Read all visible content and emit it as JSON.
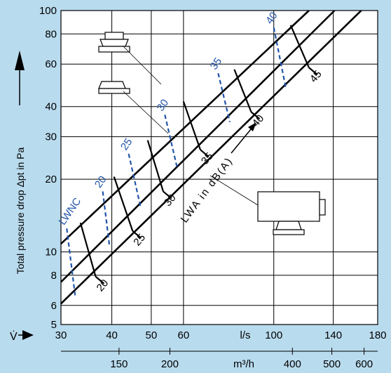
{
  "chart_data": {
    "type": "line",
    "scale": "log-log",
    "background_color": "#b9dbee",
    "plot_color": "#ffffff",
    "ylabel": "Total pressure drop Δpt in Pa",
    "xlabel": "V̇",
    "x_axis_ls": {
      "range": [
        30,
        180
      ],
      "ticks": [
        30,
        40,
        50,
        60,
        100,
        140,
        180
      ],
      "tick_labels": [
        "30",
        "40",
        "50",
        "60",
        "100",
        "140",
        "180"
      ],
      "unit": "l/s"
    },
    "x_axis_m3h": {
      "ticks": [
        150,
        200,
        400,
        500,
        600
      ],
      "tick_labels": [
        "150",
        "200",
        "400",
        "500",
        "600"
      ],
      "unit": "m³/h"
    },
    "y_axis": {
      "range": [
        5,
        100
      ],
      "ticks": [
        5,
        6,
        8,
        10,
        20,
        30,
        40,
        60,
        80,
        100
      ],
      "tick_labels": [
        "5",
        "6",
        "8",
        "10",
        "20",
        "30",
        "40",
        "60",
        "80",
        "100"
      ]
    },
    "series": [
      {
        "style": "solid",
        "points": [
          [
            30,
            10.8
          ],
          [
            122,
            100
          ]
        ]
      },
      {
        "style": "solid",
        "points": [
          [
            30,
            7.5
          ],
          [
            141,
            100
          ]
        ]
      },
      {
        "style": "solid",
        "points": [
          [
            30,
            6.1
          ],
          [
            164,
            100
          ]
        ]
      }
    ],
    "sound_level_label": "LWA in dB(A)",
    "sound_level_black": {
      "labels": [
        "20",
        "25",
        "30",
        "35",
        "40",
        "45"
      ],
      "ticks": [
        {
          "label": "20",
          "top": [
            33.5,
            13.2
          ],
          "bottom": [
            36.5,
            7.9
          ]
        },
        {
          "label": "25",
          "top": [
            40.5,
            20.5
          ],
          "bottom": [
            45,
            12.2
          ]
        },
        {
          "label": "30",
          "top": [
            49,
            29
          ],
          "bottom": [
            53.5,
            17.8
          ]
        },
        {
          "label": "35",
          "top": [
            60,
            42
          ],
          "bottom": [
            66,
            26.5
          ]
        },
        {
          "label": "40",
          "top": [
            80,
            57
          ],
          "bottom": [
            88,
            38
          ]
        },
        {
          "label": "45",
          "top": [
            110,
            87
          ],
          "bottom": [
            122,
            58
          ]
        }
      ]
    },
    "sound_level_blue": {
      "color": "#2255a8",
      "label": "LWNC",
      "labels": [
        "20",
        "25",
        "30",
        "35",
        "40"
      ],
      "ticks": [
        {
          "label": "LWNC",
          "top": [
            31,
            12.5
          ],
          "bottom": [
            32.5,
            6.6
          ]
        },
        {
          "label": "20",
          "top": [
            38,
            17.8
          ],
          "bottom": [
            39.5,
            10.5
          ]
        },
        {
          "label": "25",
          "top": [
            44,
            25.5
          ],
          "bottom": [
            47,
            15.5
          ]
        },
        {
          "label": "30",
          "top": [
            54,
            37
          ],
          "bottom": [
            58,
            22
          ]
        },
        {
          "label": "35",
          "top": [
            73,
            55
          ],
          "bottom": [
            78,
            34.5
          ]
        },
        {
          "label": "40",
          "top": [
            100,
            85
          ],
          "bottom": [
            107,
            48
          ]
        }
      ]
    }
  }
}
